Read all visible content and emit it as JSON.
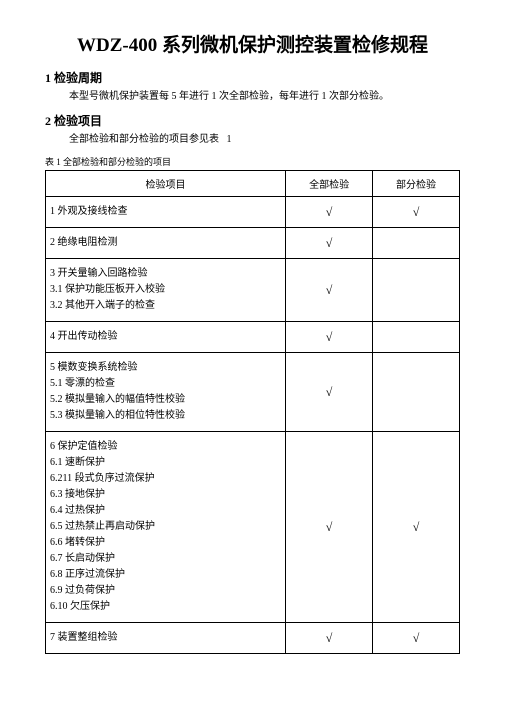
{
  "title": "WDZ-400 系列微机保护测控装置检修规程",
  "section1": {
    "heading": "1 检验周期",
    "body": "本型号微机保护装置每 5 年进行 1 次全部检验，每年进行 1 次部分检验。"
  },
  "section2": {
    "heading": "2 检验项目",
    "body": "全部检验和部分检验的项目参见表   1"
  },
  "table": {
    "caption": "表 1 全部检验和部分检验的项目",
    "headers": {
      "item": "检验项目",
      "full": "全部检验",
      "part": "部分检验"
    },
    "rows": [
      {
        "lines": [
          "1 外观及接线检查"
        ],
        "full": "√",
        "part": "√"
      },
      {
        "lines": [
          "2 绝缘电阻检测"
        ],
        "full": "√",
        "part": ""
      },
      {
        "lines": [
          "3 开关量输入回路检验",
          "3.1 保护功能压板开入校验",
          "3.2 其他开入端子的检查"
        ],
        "full": "√",
        "part": ""
      },
      {
        "lines": [
          "4 开出传动检验"
        ],
        "full": "√",
        "part": ""
      },
      {
        "lines": [
          "5 模数变换系统检验",
          "5.1 零漂的检查",
          "5.2 模拟量输入的幅值特性校验",
          "5.3 模拟量输入的相位特性校验"
        ],
        "full": "√",
        "part": ""
      },
      {
        "lines": [
          "6 保护定值检验",
          "6.1 速断保护",
          "6.211 段式负序过流保护",
          "6.3 接地保护",
          "6.4 过热保护",
          "6.5 过热禁止再启动保护",
          "6.6 堵转保护",
          "6.7 长启动保护",
          "6.8 正序过流保护",
          "6.9 过负荷保护",
          "6.10 欠压保护"
        ],
        "full": "√",
        "part": "√"
      },
      {
        "lines": [
          "7 装置整组检验"
        ],
        "full": "√",
        "part": "√"
      }
    ]
  }
}
